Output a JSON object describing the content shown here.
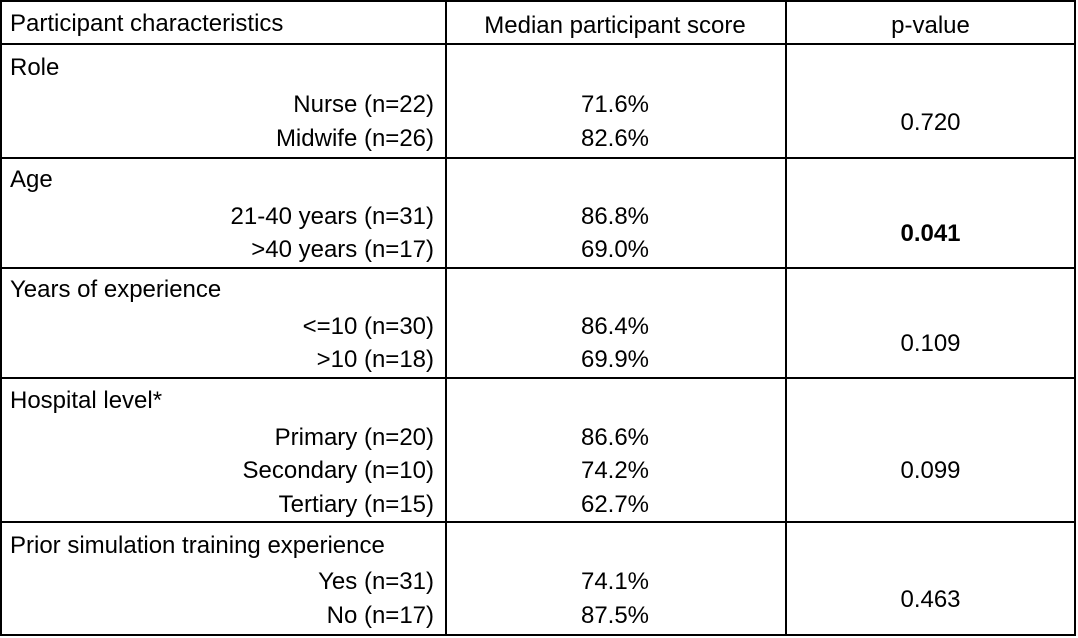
{
  "header": {
    "col1": "Participant characteristics",
    "col2": "Median participant score",
    "col3": "p-value"
  },
  "groups": [
    {
      "label": "Role",
      "rows": [
        {
          "label": "Nurse (n=22)",
          "score": "71.6%"
        },
        {
          "label": "Midwife (n=26)",
          "score": "82.6%"
        }
      ],
      "p_value": "0.720",
      "p_bold": false
    },
    {
      "label": "Age",
      "rows": [
        {
          "label": "21-40 years (n=31)",
          "score": "86.8%"
        },
        {
          "label": ">40 years (n=17)",
          "score": "69.0%"
        }
      ],
      "p_value": "0.041",
      "p_bold": true
    },
    {
      "label": "Years of experience",
      "rows": [
        {
          "label": "<=10 (n=30)",
          "score": "86.4%"
        },
        {
          "label": ">10 (n=18)",
          "score": "69.9%"
        }
      ],
      "p_value": "0.109",
      "p_bold": false
    },
    {
      "label": "Hospital level*",
      "rows": [
        {
          "label": "Primary (n=20)",
          "score": "86.6%"
        },
        {
          "label": "Secondary (n=10)",
          "score": "74.2%"
        },
        {
          "label": "Tertiary (n=15)",
          "score": "62.7%"
        }
      ],
      "p_value": "0.099",
      "p_bold": false
    },
    {
      "label": "Prior simulation training experience",
      "rows": [
        {
          "label": "Yes (n=31)",
          "score": "74.1%"
        },
        {
          "label": "No (n=17)",
          "score": "87.5%"
        }
      ],
      "p_value": "0.463",
      "p_bold": false
    }
  ]
}
